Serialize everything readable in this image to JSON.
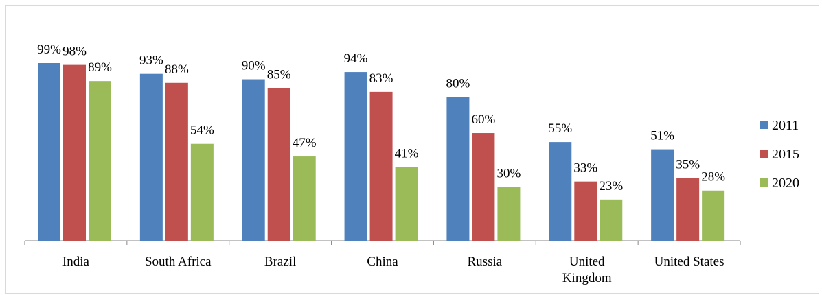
{
  "chart_data": {
    "type": "bar",
    "title": "",
    "xlabel": "",
    "ylabel": "",
    "categories": [
      "India",
      "South Africa",
      "Brazil",
      "China",
      "Russia",
      "United Kingdom",
      "United States"
    ],
    "series": [
      {
        "name": "2011",
        "color": "#4f81bd",
        "values": [
          99,
          93,
          90,
          94,
          80,
          55,
          51
        ],
        "labels": [
          "99%",
          "93%",
          "90%",
          "94%",
          "80%",
          "55%",
          "51%"
        ]
      },
      {
        "name": "2015",
        "color": "#c0504d",
        "values": [
          98,
          88,
          85,
          83,
          60,
          33,
          35
        ],
        "labels": [
          "98%",
          "88%",
          "85%",
          "83%",
          "60%",
          "33%",
          "35%"
        ]
      },
      {
        "name": "2020",
        "color": "#9bbb59",
        "values": [
          89,
          54,
          47,
          41,
          30,
          23,
          28
        ],
        "labels": [
          "89%",
          "54%",
          "47%",
          "41%",
          "30%",
          "23%",
          "28%"
        ]
      }
    ],
    "ylim": [
      0,
      100
    ],
    "grid": false,
    "legend_position": "right",
    "y_axis_visible": false
  }
}
